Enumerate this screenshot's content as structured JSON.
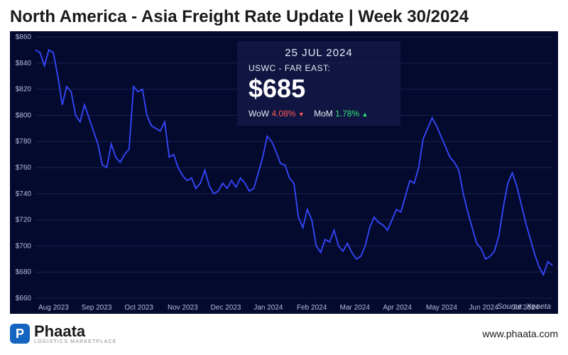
{
  "title": "North America - Asia Freight Rate Update | Week 30/2024",
  "chart": {
    "type": "line",
    "background_color": "#040a2e",
    "grid_color": "#1a2250",
    "axis_text_color": "#b8bdd8",
    "axis_fontsize": 10,
    "line_color": "#3548ff",
    "line_width": 1.8,
    "ylim": [
      660,
      860
    ],
    "ytick_step": 20,
    "yticks": [
      "$660",
      "$680",
      "$700",
      "$720",
      "$740",
      "$760",
      "$780",
      "$800",
      "$820",
      "$840",
      "$860"
    ],
    "xticks": [
      "Aug 2023",
      "Sep 2023",
      "Oct 2023",
      "Nov 2023",
      "Dec 2023",
      "Jan 2024",
      "Feb 2024",
      "Mar 2024",
      "Apr 2024",
      "May 2024",
      "Jun 2024",
      "Jul 2024"
    ],
    "series": [
      850,
      848,
      838,
      850,
      848,
      830,
      808,
      822,
      818,
      800,
      795,
      808,
      798,
      788,
      778,
      762,
      760,
      778,
      768,
      764,
      770,
      774,
      822,
      818,
      820,
      800,
      792,
      790,
      788,
      795,
      768,
      770,
      760,
      754,
      750,
      752,
      744,
      748,
      758,
      746,
      740,
      742,
      748,
      744,
      750,
      745,
      752,
      748,
      742,
      744,
      756,
      768,
      784,
      780,
      772,
      763,
      762,
      752,
      748,
      722,
      714,
      728,
      720,
      700,
      695,
      705,
      703,
      712,
      700,
      696,
      702,
      695,
      690,
      692,
      700,
      714,
      722,
      718,
      716,
      712,
      720,
      728,
      726,
      738,
      750,
      748,
      760,
      782,
      790,
      798,
      792,
      784,
      776,
      768,
      764,
      758,
      740,
      726,
      714,
      702,
      698,
      690,
      692,
      696,
      708,
      730,
      748,
      756,
      746,
      732,
      718,
      706,
      694,
      684,
      678,
      688,
      685
    ],
    "source_label": "Source: Xeneta"
  },
  "tooltip": {
    "date": "25 JUL 2024",
    "lane": "USWC - FAR EAST:",
    "value": "$685",
    "wow_label": "WoW",
    "wow_value": "4.08%",
    "wow_direction": "down",
    "mom_label": "MoM",
    "mom_value": "1.78%",
    "mom_direction": "up"
  },
  "footer": {
    "logo_initial": "P",
    "logo_name": "Phaata",
    "logo_tagline": "Logistics Marketplace",
    "site_url": "www.phaata.com"
  },
  "colors": {
    "down": "#ff5a5a",
    "up": "#2ee27a"
  }
}
